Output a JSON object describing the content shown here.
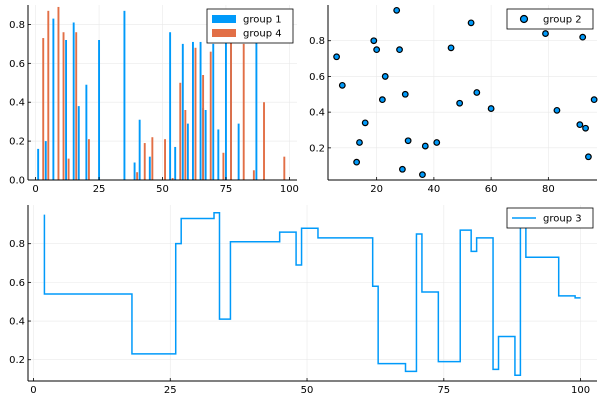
{
  "colors": {
    "blue": "#009AFA",
    "orange": "#E26F46",
    "grid": "#e9e9e9",
    "axis": "#000000",
    "marker_edge": "#000000"
  },
  "chart_data": [
    {
      "type": "bar",
      "title": "",
      "legend_position": "top-right",
      "grid": true,
      "xlim": [
        -3,
        103
      ],
      "ylim": [
        0,
        0.9
      ],
      "xticks": [
        0,
        25,
        50,
        75,
        100
      ],
      "yticks": [
        0.0,
        0.2,
        0.4,
        0.6,
        0.8
      ],
      "xtick_labels": [
        "0",
        "25",
        "50",
        "75",
        "100"
      ],
      "ytick_labels": [
        "0.0",
        "0.2",
        "0.4",
        "0.6",
        "0.8"
      ],
      "series": [
        {
          "name": "group 1",
          "color": "#009AFA",
          "x": [
            1,
            4,
            7,
            12,
            15,
            17,
            20,
            25,
            35,
            39,
            41,
            45,
            53,
            55,
            58,
            60,
            62,
            65,
            66,
            67,
            70,
            72,
            75,
            77,
            80,
            87
          ],
          "values": [
            0.16,
            0.2,
            0.83,
            0.72,
            0.81,
            0.38,
            0.49,
            0.72,
            0.87,
            0.09,
            0.31,
            0.12,
            0.76,
            0.17,
            0.7,
            0.29,
            0.71,
            0.71,
            0.37,
            0.36,
            0.7,
            0.26,
            0.71,
            0.75,
            0.29,
            0.71
          ]
        },
        {
          "name": "group 4",
          "color": "#E26F46",
          "x": [
            3,
            5,
            9,
            11,
            13,
            16,
            21,
            40,
            43,
            46,
            51,
            54,
            57,
            59,
            63,
            66,
            69,
            74,
            77,
            82,
            86,
            90,
            98
          ],
          "values": [
            0.73,
            0.87,
            0.89,
            0.76,
            0.11,
            0.76,
            0.21,
            0.04,
            0.19,
            0.22,
            0.21,
            0.01,
            0.5,
            0.36,
            0.68,
            0.54,
            0.66,
            0.14,
            0.71,
            0.7,
            0.05,
            0.4,
            0.12
          ]
        }
      ]
    },
    {
      "type": "scatter",
      "title": "",
      "legend_position": "top-right",
      "grid": true,
      "xlim": [
        3,
        97
      ],
      "ylim": [
        0.02,
        1.0
      ],
      "xticks": [
        20,
        40,
        60,
        80
      ],
      "yticks": [
        0.2,
        0.4,
        0.6,
        0.8
      ],
      "xtick_labels": [
        "20",
        "40",
        "60",
        "80"
      ],
      "ytick_labels": [
        "0.2",
        "0.4",
        "0.6",
        "0.8"
      ],
      "series": [
        {
          "name": "group 2",
          "color": "#009AFA",
          "x": [
            6,
            8,
            13,
            14,
            16,
            19,
            20,
            22,
            23,
            27,
            28,
            29,
            30,
            31,
            36,
            37,
            41,
            46,
            49,
            53,
            55,
            60,
            79,
            83,
            91,
            92,
            93,
            94,
            96
          ],
          "y": [
            0.71,
            0.55,
            0.12,
            0.23,
            0.34,
            0.8,
            0.75,
            0.47,
            0.6,
            0.97,
            0.75,
            0.08,
            0.5,
            0.24,
            0.05,
            0.21,
            0.23,
            0.76,
            0.45,
            0.9,
            0.51,
            0.42,
            0.84,
            0.41,
            0.33,
            0.82,
            0.31,
            0.15,
            0.47
          ]
        }
      ]
    },
    {
      "type": "line",
      "title": "",
      "legend_position": "top-right",
      "grid": true,
      "step": "post",
      "xlim": [
        -1,
        103
      ],
      "ylim": [
        0.09,
        1.0
      ],
      "xticks": [
        0,
        25,
        50,
        75,
        100
      ],
      "yticks": [
        0.2,
        0.4,
        0.6,
        0.8
      ],
      "xtick_labels": [
        "0",
        "25",
        "50",
        "75",
        "100"
      ],
      "ytick_labels": [
        "0.2",
        "0.4",
        "0.6",
        "0.8"
      ],
      "series": [
        {
          "name": "group 3",
          "color": "#009AFA",
          "x": [
            2,
            2,
            18,
            26,
            27,
            33,
            34,
            36,
            45,
            48,
            49,
            52,
            62,
            63,
            68,
            70,
            71,
            74,
            78,
            80,
            81,
            84,
            85,
            88,
            89,
            90,
            96,
            99,
            100
          ],
          "y": [
            0.95,
            0.54,
            0.23,
            0.8,
            0.93,
            0.96,
            0.41,
            0.81,
            0.86,
            0.69,
            0.88,
            0.83,
            0.58,
            0.18,
            0.14,
            0.85,
            0.55,
            0.19,
            0.87,
            0.76,
            0.83,
            0.15,
            0.32,
            0.12,
            0.89,
            0.73,
            0.53,
            0.52,
            0.52
          ]
        }
      ]
    }
  ]
}
